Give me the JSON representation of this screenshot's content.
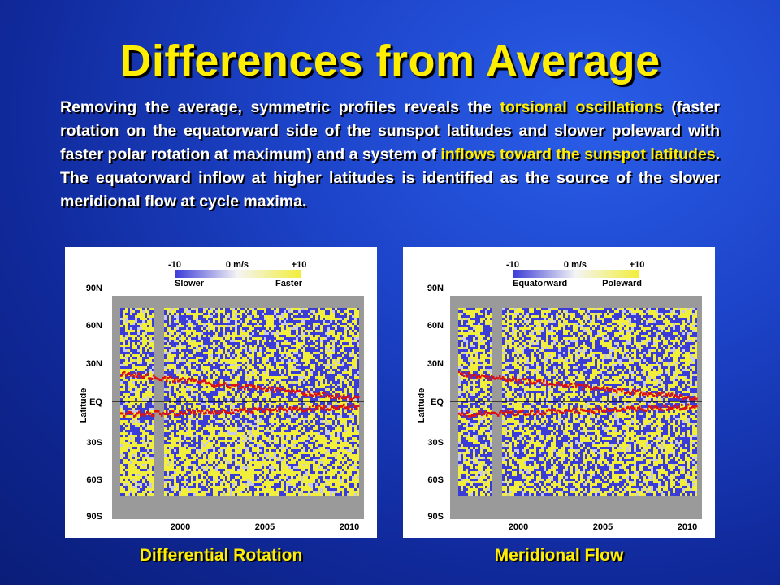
{
  "title": "Differences from Average",
  "paragraph": {
    "p1": "Removing the average, symmetric profiles reveals the ",
    "h1": "torsional oscillations",
    "p2": " (faster rotation on the equatorward side of the sunspot latitudes and slower poleward with faster polar rotation at maximum) and a system of ",
    "h2": "inflows toward the sunspot latitudes",
    "p3": ". The equatorward inflow at higher latitudes is identified as the source of the slower meridional flow at cycle maxima."
  },
  "panels": [
    {
      "colorbar": {
        "min_label": "-10",
        "mid_label": "0 m/s",
        "max_label": "+10",
        "left_label": "Slower",
        "right_label": "Faster"
      },
      "y_axis_label": "Latitude",
      "y_ticks": [
        "90N",
        "60N",
        "30N",
        "EQ",
        "30S",
        "60S",
        "90S"
      ],
      "x_ticks": [
        "2000",
        "2005",
        "2010"
      ],
      "caption": "Differential Rotation"
    },
    {
      "colorbar": {
        "min_label": "-10",
        "mid_label": "0 m/s",
        "max_label": "+10",
        "left_label": "Equatorward",
        "right_label": "Poleward"
      },
      "y_axis_label": "Latitude",
      "y_ticks": [
        "90N",
        "60N",
        "30N",
        "EQ",
        "30S",
        "60S",
        "90S"
      ],
      "x_ticks": [
        "2000",
        "2005",
        "2010"
      ],
      "caption": "Meridional Flow"
    }
  ],
  "colors": {
    "title": "#ffee00",
    "highlight": "#ffee00",
    "blue": "#3b3bd8",
    "yellow": "#f2ee3c",
    "red": "#e01010",
    "gray": "#9a9a9a"
  }
}
